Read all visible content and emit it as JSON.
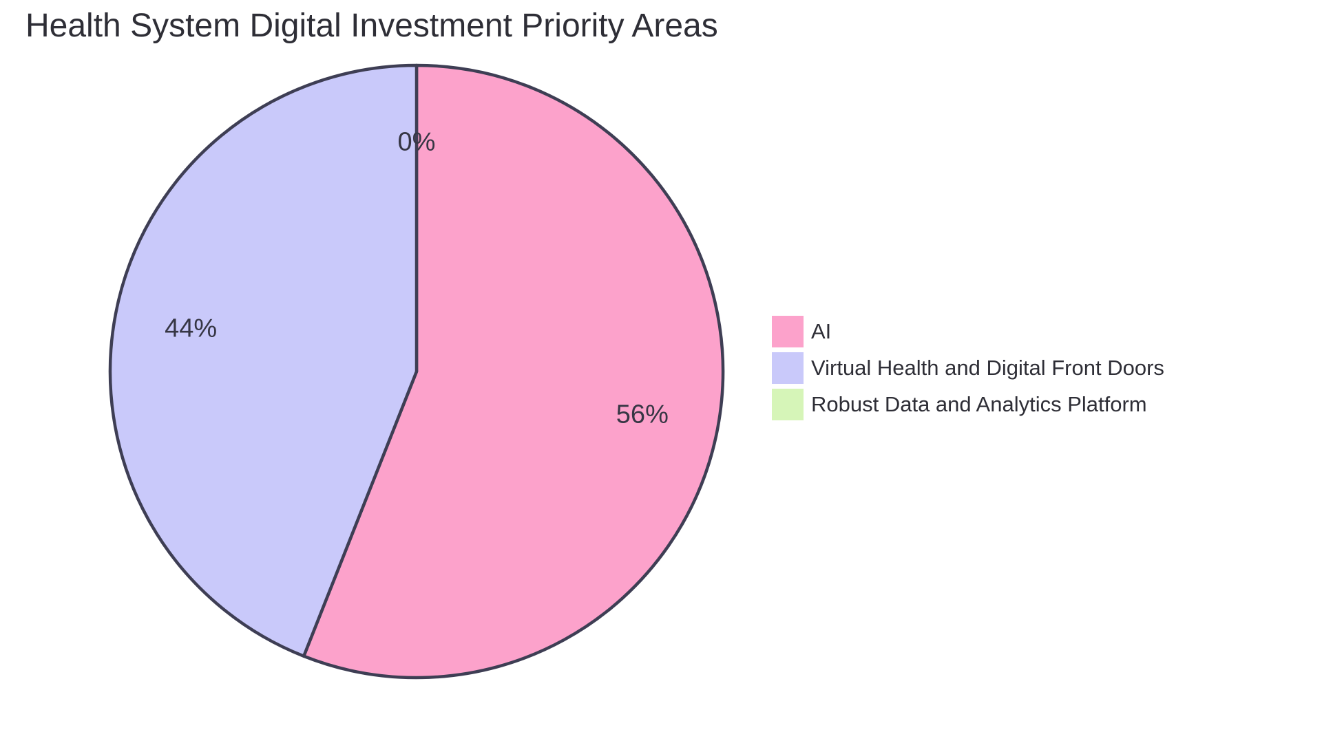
{
  "chart_data": {
    "type": "pie",
    "title": "Health System Digital Investment Priority Areas",
    "slices": [
      {
        "label": "AI",
        "value": 56,
        "display": "56%",
        "color": "#FCA2CB"
      },
      {
        "label": "Virtual Health and Digital Front Doors",
        "value": 44,
        "display": "44%",
        "color": "#C9C9FA"
      },
      {
        "label": "Robust Data and Analytics Platform",
        "value": 0,
        "display": "0%",
        "color": "#D6F5B8"
      }
    ],
    "start_angle_deg": 0,
    "direction": "clockwise",
    "slice_border_color": "#3E3E54",
    "slice_border_width": 4.5,
    "value_label_color": "#363644",
    "label_distance": 0.75,
    "legend_position": "right",
    "background": "#FFFFFF"
  }
}
